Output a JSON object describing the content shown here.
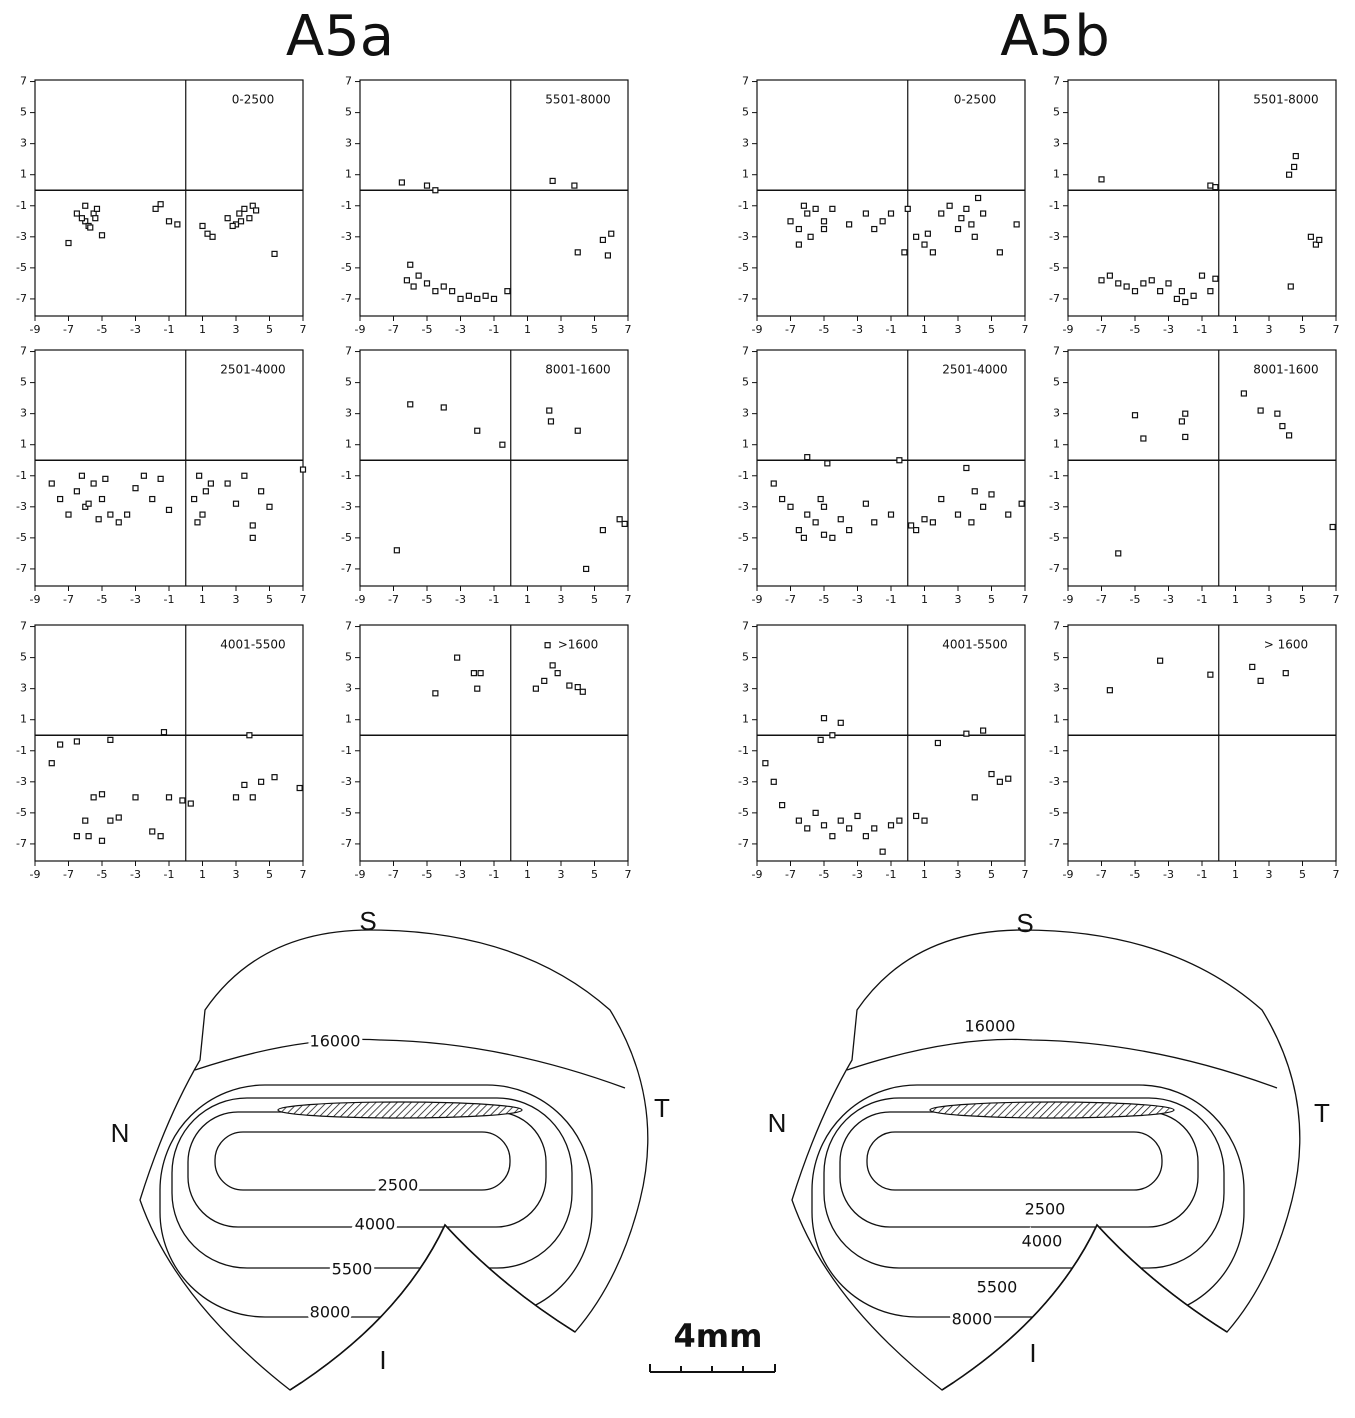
{
  "headings": [
    "A5a",
    "A5b"
  ],
  "maps": [
    {
      "labels": [
        "S",
        "N",
        "T",
        "I"
      ],
      "contours": [
        "16000",
        "2500",
        "4000",
        "5500",
        "8000"
      ]
    },
    {
      "labels": [
        "S",
        "N",
        "T",
        "I"
      ],
      "contours": [
        "16000",
        "2500",
        "4000",
        "5500",
        "8000"
      ]
    }
  ],
  "scale_bar": "4mm",
  "chart_data": [
    {
      "type": "scatter",
      "title": "0-2500",
      "xlim": [
        -9,
        7
      ],
      "ylim": [
        -8.1,
        7.1
      ],
      "xticks": [
        -9,
        -7,
        -5,
        -3,
        -1,
        1,
        3,
        5,
        7
      ],
      "yticks": [
        7,
        5,
        3,
        1,
        -1,
        -3,
        -5,
        -7
      ],
      "x": [
        -7,
        -6.5,
        -6,
        -5.8,
        -5.5,
        -5.3,
        -5,
        -6.2,
        -5.7,
        -1.8,
        -1.5,
        -1,
        -0.5,
        1,
        1.3,
        1.6,
        2.5,
        3,
        3.2,
        3.5,
        3.8,
        4,
        4.2,
        3.3,
        2.8,
        5.3,
        -5.4,
        -6
      ],
      "values": [
        -3.4,
        -1.5,
        -2,
        -2.3,
        -1.5,
        -1.2,
        -2.9,
        -1.8,
        -2.4,
        -1.2,
        -0.9,
        -2,
        -2.2,
        -2.3,
        -2.8,
        -3,
        -1.8,
        -2.2,
        -1.5,
        -1.2,
        -1.8,
        -1,
        -1.3,
        -2,
        -2.3,
        -4.1,
        -1.8,
        -1
      ]
    },
    {
      "type": "scatter",
      "title": "2501-4000",
      "xlim": [
        -9,
        7
      ],
      "ylim": [
        -8.1,
        7.1
      ],
      "xticks": [
        -9,
        -7,
        -5,
        -3,
        -1,
        1,
        3,
        5,
        7
      ],
      "yticks": [
        7,
        5,
        3,
        1,
        -1,
        -3,
        -5,
        -7
      ],
      "x": [
        -8,
        -7.5,
        -7,
        -6.5,
        -6,
        -5.5,
        -5,
        -4.5,
        -4,
        -6.2,
        -5.8,
        -5.2,
        -4.8,
        -3.5,
        -3,
        -2.5,
        -2,
        -1.5,
        -1,
        0.5,
        0.8,
        1,
        1.2,
        1.5,
        0.7,
        2.5,
        3,
        3.5,
        4,
        4.5,
        4,
        5,
        7
      ],
      "values": [
        -1.5,
        -2.5,
        -3.5,
        -2,
        -3,
        -1.5,
        -2.5,
        -3.5,
        -4,
        -1,
        -2.8,
        -3.8,
        -1.2,
        -3.5,
        -1.8,
        -1,
        -2.5,
        -1.2,
        -3.2,
        -2.5,
        -1,
        -3.5,
        -2,
        -1.5,
        -4,
        -1.5,
        -2.8,
        -1,
        -4.2,
        -2,
        -5,
        -3,
        -0.6
      ]
    },
    {
      "type": "scatter",
      "title": "4001-5500",
      "xlim": [
        -9,
        7
      ],
      "ylim": [
        -8.1,
        7.1
      ],
      "xticks": [
        -9,
        -7,
        -5,
        -3,
        -1,
        1,
        3,
        5,
        7
      ],
      "yticks": [
        7,
        5,
        3,
        1,
        -1,
        -3,
        -5,
        -7
      ],
      "x": [
        -8,
        -7.5,
        -6.5,
        -4.5,
        -5.5,
        -5,
        -4.5,
        -4,
        -6,
        -5.8,
        -6.5,
        -5,
        -3,
        -2,
        -1.5,
        -1,
        -1.3,
        -0.2,
        0.3,
        3,
        3.5,
        4,
        4.5,
        5.3,
        6.8,
        3.8
      ],
      "values": [
        -1.8,
        -0.6,
        -0.4,
        -0.3,
        -4,
        -3.8,
        -5.5,
        -5.3,
        -5.5,
        -6.5,
        -6.5,
        -6.8,
        -4,
        -6.2,
        -6.5,
        -4,
        0.2,
        -4.2,
        -4.4,
        -4,
        -3.2,
        -4,
        -3,
        -2.7,
        -3.4,
        0
      ]
    },
    {
      "type": "scatter",
      "title": "5501-8000",
      "xlim": [
        -9,
        7
      ],
      "ylim": [
        -8.1,
        7.1
      ],
      "xticks": [
        -9,
        -7,
        -5,
        -3,
        -1,
        1,
        3,
        5,
        7
      ],
      "yticks": [
        7,
        5,
        3,
        1,
        -1,
        -3,
        -5,
        -7
      ],
      "x": [
        -6.5,
        -5,
        -4.5,
        -6,
        -5.5,
        -5,
        -4.5,
        -4,
        -3.5,
        -3,
        -2.5,
        -2,
        -1.5,
        -1,
        -0.2,
        -6.2,
        -5.8,
        2.5,
        3.8,
        4,
        5.5,
        6,
        5.8
      ],
      "values": [
        0.5,
        0.3,
        0,
        -4.8,
        -5.5,
        -6,
        -6.5,
        -6.2,
        -6.5,
        -7,
        -6.8,
        -7,
        -6.8,
        -7,
        -6.5,
        -5.8,
        -6.2,
        0.6,
        0.3,
        -4,
        -3.2,
        -2.8,
        -4.2
      ]
    },
    {
      "type": "scatter",
      "title": "8001-1600",
      "xlim": [
        -9,
        7
      ],
      "ylim": [
        -8.1,
        7.1
      ],
      "xticks": [
        -9,
        -7,
        -5,
        -3,
        -1,
        1,
        3,
        5,
        7
      ],
      "yticks": [
        7,
        5,
        3,
        1,
        -1,
        -3,
        -5,
        -7
      ],
      "x": [
        -6,
        -4,
        -2,
        -0.5,
        2.3,
        2.4,
        4,
        -6.8,
        5.5,
        4.5,
        6.5,
        6.8
      ],
      "values": [
        3.6,
        3.4,
        1.9,
        1,
        3.2,
        2.5,
        1.9,
        -5.8,
        -4.5,
        -7,
        -3.8,
        -4.1
      ]
    },
    {
      "type": "scatter",
      "title": ">1600",
      "xlim": [
        -9,
        7
      ],
      "ylim": [
        -8.1,
        7.1
      ],
      "xticks": [
        -9,
        -7,
        -5,
        -3,
        -1,
        1,
        3,
        5,
        7
      ],
      "yticks": [
        7,
        5,
        3,
        1,
        -1,
        -3,
        -5,
        -7
      ],
      "x": [
        -4.5,
        -3.2,
        -2.2,
        -2,
        -1.8,
        1.5,
        2,
        2.2,
        2.5,
        2.8,
        3.5,
        4,
        4.3
      ],
      "values": [
        2.7,
        5,
        4,
        3,
        4,
        3,
        3.5,
        5.8,
        4.5,
        4,
        3.2,
        3.1,
        2.8
      ]
    },
    {
      "type": "scatter",
      "title": "0-2500",
      "xlim": [
        -9,
        7
      ],
      "ylim": [
        -8.1,
        7.1
      ],
      "xticks": [
        -9,
        -7,
        -5,
        -3,
        -1,
        1,
        3,
        5,
        7
      ],
      "yticks": [
        7,
        5,
        3,
        1,
        -1,
        -3,
        -5,
        -7
      ],
      "x": [
        -7,
        -6.5,
        -6,
        -5.5,
        -5,
        -6.5,
        -6.2,
        -5.8,
        -5,
        -4.5,
        -3.5,
        -2.5,
        -2,
        -1.5,
        -1,
        0,
        0.5,
        1,
        1.2,
        1.5,
        2,
        2.5,
        3,
        3.2,
        3.5,
        3.8,
        4,
        4.2,
        4.5,
        5.5,
        6.5,
        -0.2
      ],
      "values": [
        -2,
        -2.5,
        -1.5,
        -1.2,
        -2,
        -3.5,
        -1,
        -3,
        -2.5,
        -1.2,
        -2.2,
        -1.5,
        -2.5,
        -2,
        -1.5,
        -1.2,
        -3,
        -3.5,
        -2.8,
        -4,
        -1.5,
        -1,
        -2.5,
        -1.8,
        -1.2,
        -2.2,
        -3,
        -0.5,
        -1.5,
        -4,
        -2.2,
        -4
      ]
    },
    {
      "type": "scatter",
      "title": "2501-4000",
      "xlim": [
        -9,
        7
      ],
      "ylim": [
        -8.1,
        7.1
      ],
      "xticks": [
        -9,
        -7,
        -5,
        -3,
        -1,
        1,
        3,
        5,
        7
      ],
      "yticks": [
        7,
        5,
        3,
        1,
        -1,
        -3,
        -5,
        -7
      ],
      "x": [
        -8,
        -7.5,
        -7,
        -6.5,
        -6,
        -5.5,
        -5,
        -4.5,
        -4,
        -3.5,
        -6,
        -5.2,
        -4.8,
        -2.5,
        -2,
        -1,
        0.2,
        0.5,
        1,
        1.5,
        -0.5,
        2,
        3,
        3.5,
        4,
        4.5,
        5,
        3.8,
        6,
        6.8,
        -6.2,
        -5
      ],
      "values": [
        -1.5,
        -2.5,
        -3,
        -4.5,
        -3.5,
        -4,
        -3,
        -5,
        -3.8,
        -4.5,
        0.2,
        -2.5,
        -0.2,
        -2.8,
        -4,
        -3.5,
        -4.2,
        -4.5,
        -3.8,
        -4,
        0,
        -2.5,
        -3.5,
        -0.5,
        -2,
        -3,
        -2.2,
        -4,
        -3.5,
        -2.8,
        -5,
        -4.8
      ]
    },
    {
      "type": "scatter",
      "title": "4001-5500",
      "xlim": [
        -9,
        7
      ],
      "ylim": [
        -8.1,
        7.1
      ],
      "xticks": [
        -9,
        -7,
        -5,
        -3,
        -1,
        1,
        3,
        5,
        7
      ],
      "yticks": [
        7,
        5,
        3,
        1,
        -1,
        -3,
        -5,
        -7
      ],
      "x": [
        -8.5,
        -8,
        -7.5,
        -6.5,
        -6,
        -5.5,
        -5,
        -4.5,
        -4,
        -3.5,
        -3,
        -2.5,
        -2,
        -1.5,
        -1,
        -0.5,
        0.5,
        1,
        -5,
        -4.5,
        -4,
        -5.2,
        1.8,
        3.5,
        4.5,
        5,
        5.5,
        6,
        4
      ],
      "values": [
        -1.8,
        -3,
        -4.5,
        -5.5,
        -6,
        -5,
        -5.8,
        -6.5,
        -5.5,
        -6,
        -5.2,
        -6.5,
        -6,
        -7.5,
        -5.8,
        -5.5,
        -5.2,
        -5.5,
        1.1,
        0,
        0.8,
        -0.3,
        -0.5,
        0.1,
        0.3,
        -2.5,
        -3,
        -2.8,
        -4
      ]
    },
    {
      "type": "scatter",
      "title": "5501-8000",
      "xlim": [
        -9,
        7
      ],
      "ylim": [
        -8.1,
        7.1
      ],
      "xticks": [
        -9,
        -7,
        -5,
        -3,
        -1,
        1,
        3,
        5,
        7
      ],
      "yticks": [
        7,
        5,
        3,
        1,
        -1,
        -3,
        -5,
        -7
      ],
      "x": [
        -7,
        -0.5,
        -0.2,
        4.2,
        4.5,
        4.6,
        5.5,
        5.8,
        6,
        4.3,
        -7,
        -6.5,
        -6,
        -5.5,
        -5,
        -4.5,
        -4,
        -3.5,
        -3,
        -2.5,
        -2,
        -1.5,
        -1,
        -0.5,
        -0.2,
        -2.2
      ],
      "values": [
        0.7,
        0.3,
        0.2,
        1,
        1.5,
        2.2,
        -3,
        -3.5,
        -3.2,
        -6.2,
        -5.8,
        -5.5,
        -6,
        -6.2,
        -6.5,
        -6,
        -5.8,
        -6.5,
        -6,
        -7,
        -7.2,
        -6.8,
        -5.5,
        -6.5,
        -5.7,
        -6.5
      ]
    },
    {
      "type": "scatter",
      "title": "8001-1600",
      "xlim": [
        -9,
        7
      ],
      "ylim": [
        -8.1,
        7.1
      ],
      "xticks": [
        -9,
        -7,
        -5,
        -3,
        -1,
        1,
        3,
        5,
        7
      ],
      "yticks": [
        7,
        5,
        3,
        1,
        -1,
        -3,
        -5,
        -7
      ],
      "x": [
        -5,
        -4.5,
        -2.2,
        -2,
        -2,
        1.5,
        2.5,
        3.5,
        3.8,
        4.2,
        -6,
        6.8
      ],
      "values": [
        2.9,
        1.4,
        2.5,
        3,
        1.5,
        4.3,
        3.2,
        3,
        2.2,
        1.6,
        -6,
        -4.3
      ]
    },
    {
      "type": "scatter",
      "title": "> 1600",
      "xlim": [
        -9,
        7
      ],
      "ylim": [
        -8.1,
        7.1
      ],
      "xticks": [
        -9,
        -7,
        -5,
        -3,
        -1,
        1,
        3,
        5,
        7
      ],
      "yticks": [
        7,
        5,
        3,
        1,
        -1,
        -3,
        -5,
        -7
      ],
      "x": [
        -6.5,
        -3.5,
        -0.5,
        2,
        2.5,
        4
      ],
      "values": [
        2.9,
        4.8,
        3.9,
        4.4,
        3.5,
        4
      ]
    }
  ]
}
